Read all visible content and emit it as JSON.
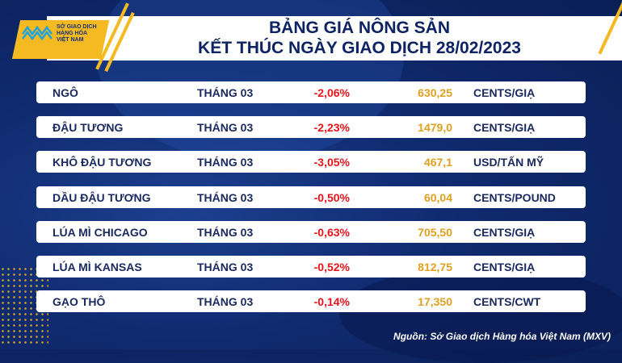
{
  "header": {
    "logo_text": [
      "SỞ GIAO DỊCH",
      "HÀNG HÓA",
      "VIỆT NAM"
    ],
    "title_line1": "BẢNG GIÁ NÔNG SẢN",
    "title_line2": "KẾT THÚC NGÀY GIAO DỊCH 28/02/2023"
  },
  "rows": [
    {
      "name": "NGÔ",
      "month": "THÁNG 03",
      "change": "-2,06%",
      "price": "630,25",
      "unit": "CENTS/GIẠ"
    },
    {
      "name": "ĐẬU TƯƠNG",
      "month": "THÁNG 03",
      "change": "-2,23%",
      "price": "1479,0",
      "unit": "CENTS/GIẠ"
    },
    {
      "name": "KHÔ ĐẬU TƯƠNG",
      "month": "THÁNG 03",
      "change": "-3,05%",
      "price": "467,1",
      "unit": "USD/TẤN MỸ"
    },
    {
      "name": "DẦU ĐẬU TƯƠNG",
      "month": "THÁNG 03",
      "change": "-0,50%",
      "price": "60,04",
      "unit": "CENTS/POUND"
    },
    {
      "name": "LÚA MÌ CHICAGO",
      "month": "THÁNG 03",
      "change": "-0,63%",
      "price": "705,50",
      "unit": "CENTS/GIẠ"
    },
    {
      "name": "LÚA MÌ KANSAS",
      "month": "THÁNG 03",
      "change": "-0,52%",
      "price": "812,75",
      "unit": "CENTS/GIẠ"
    },
    {
      "name": "GẠO THÔ",
      "month": "THÁNG 03",
      "change": "-0,14%",
      "price": "17,350",
      "unit": "CENTS/CWT"
    }
  ],
  "source": "Nguồn: Sở Giao dịch Hàng hóa Việt Nam (MXV)",
  "colors": {
    "background": "#0f2a6e",
    "accent": "#f5b921",
    "negative": "#e8141c",
    "price": "#e0a020"
  }
}
